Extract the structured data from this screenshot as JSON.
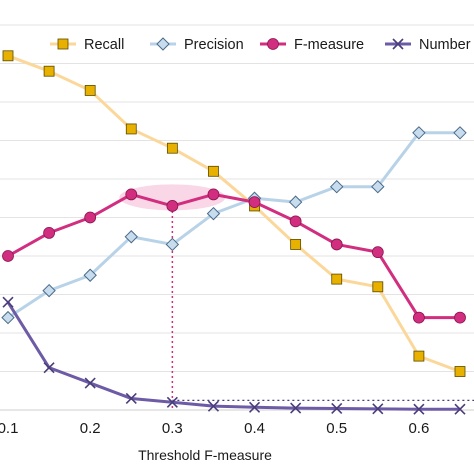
{
  "chart_data": {
    "type": "line",
    "xlabel": "Threshold F-measure",
    "xlim": [
      0.1,
      0.65
    ],
    "ylim": [
      0,
      1
    ],
    "x_ticks": [
      "0.1",
      "0.2",
      "0.3",
      "0.4",
      "0.5",
      "0.6"
    ],
    "grid": "horizontal",
    "legend_position": "top",
    "x": [
      0.1,
      0.15,
      0.2,
      0.25,
      0.3,
      0.35,
      0.4,
      0.45,
      0.5,
      0.55,
      0.6,
      0.65
    ],
    "series": [
      {
        "name": "Recall",
        "color": "#fbd79a",
        "marker": "square",
        "marker_color": "#e8b100",
        "values": [
          0.92,
          0.88,
          0.83,
          0.73,
          0.68,
          0.62,
          0.53,
          0.43,
          0.34,
          0.32,
          0.14,
          0.1
        ]
      },
      {
        "name": "Precision",
        "color": "#b8d3e8",
        "marker": "diamond",
        "marker_color": "#c7dced",
        "values": [
          0.24,
          0.31,
          0.35,
          0.45,
          0.43,
          0.51,
          0.55,
          0.54,
          0.58,
          0.58,
          0.72,
          0.72
        ]
      },
      {
        "name": "F-measure",
        "color": "#d12e7f",
        "marker": "circle",
        "marker_color": "#d12e7f",
        "values": [
          0.4,
          0.46,
          0.5,
          0.56,
          0.53,
          0.56,
          0.54,
          0.49,
          0.43,
          0.41,
          0.24,
          0.24
        ]
      },
      {
        "name": "Number",
        "color": "#6e5ba6",
        "marker": "x",
        "marker_color": "#4a3d7a",
        "values": [
          0.28,
          0.11,
          0.07,
          0.03,
          0.02,
          0.01,
          0.007,
          0.005,
          0.004,
          0.003,
          0.002,
          0.002
        ]
      }
    ],
    "annotation": {
      "x": 0.3,
      "y": 0.53,
      "style": "dotted",
      "color": "#d12e7f"
    },
    "highlight": {
      "x_range": [
        0.25,
        0.35
      ],
      "y": 0.56,
      "color": "#f4b6d2"
    }
  }
}
